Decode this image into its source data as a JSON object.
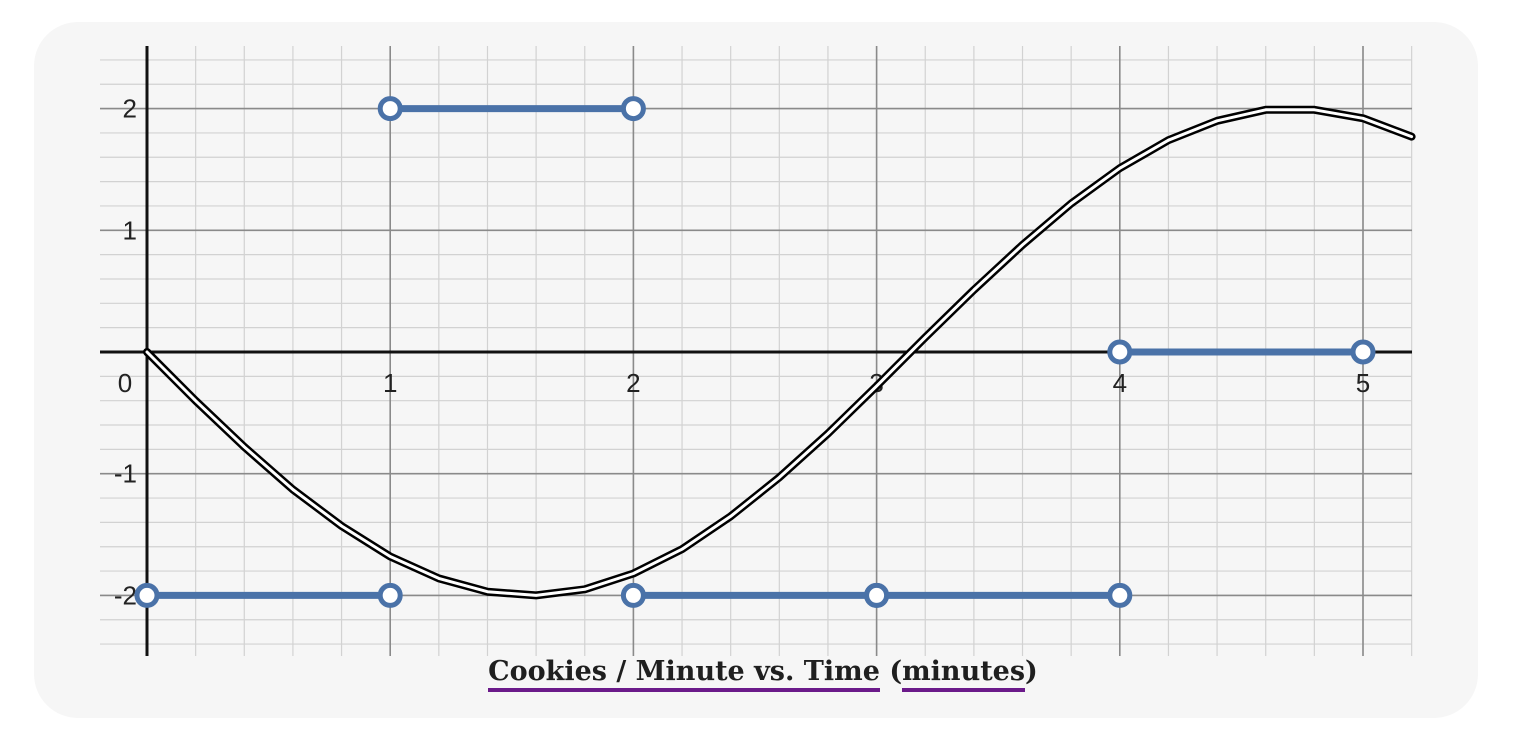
{
  "caption": {
    "part1": "Cookies / Minute vs. Time",
    "open_paren": "(",
    "part2": "minutes",
    "close_paren": ")"
  },
  "chart_data": {
    "type": "line",
    "title": "Cookies / Minute vs. Time (minutes)",
    "xlim": [
      -0.2,
      5.2
    ],
    "ylim": [
      -2.5,
      2.5
    ],
    "x_ticks": [
      0,
      1,
      2,
      3,
      4,
      5
    ],
    "y_ticks": [
      -2,
      -1,
      1,
      2
    ],
    "grid": true,
    "minor_grid_step": 0.2,
    "colors": {
      "curve": "#000000",
      "segments": "#4a72a8",
      "grid_major": "#8a8a8a",
      "grid_minor": "#d2d2d2",
      "axis": "#111111"
    },
    "curve": {
      "description_function": "y = -2*sin(x)",
      "style": "double-line",
      "x": [
        0,
        0.2,
        0.4,
        0.6,
        0.8,
        1.0,
        1.2,
        1.4,
        1.6,
        1.8,
        2.0,
        2.2,
        2.4,
        2.6,
        2.8,
        3.0,
        3.2,
        3.4,
        3.6,
        3.8,
        4.0,
        4.2,
        4.4,
        4.6,
        4.8,
        5.0,
        5.2
      ],
      "y": [
        0,
        -0.4,
        -0.78,
        -1.13,
        -1.43,
        -1.68,
        -1.86,
        -1.97,
        -2.0,
        -1.95,
        -1.82,
        -1.62,
        -1.35,
        -1.03,
        -0.67,
        -0.28,
        0.12,
        0.51,
        0.88,
        1.22,
        1.51,
        1.74,
        1.9,
        1.99,
        1.99,
        1.92,
        1.77
      ]
    },
    "step_segments": [
      {
        "x_start": 0,
        "x_end": 1,
        "y": -2,
        "open_start": true,
        "open_end": true
      },
      {
        "x_start": 1,
        "x_end": 2,
        "y": 2,
        "open_start": true,
        "open_end": true
      },
      {
        "x_start": 2,
        "x_end": 3,
        "y": -2,
        "open_start": true,
        "open_end": true
      },
      {
        "x_start": 3,
        "x_end": 4,
        "y": -2,
        "open_start": true,
        "open_end": true
      },
      {
        "x_start": 4,
        "x_end": 5,
        "y": 0,
        "open_start": true,
        "open_end": true
      }
    ]
  }
}
